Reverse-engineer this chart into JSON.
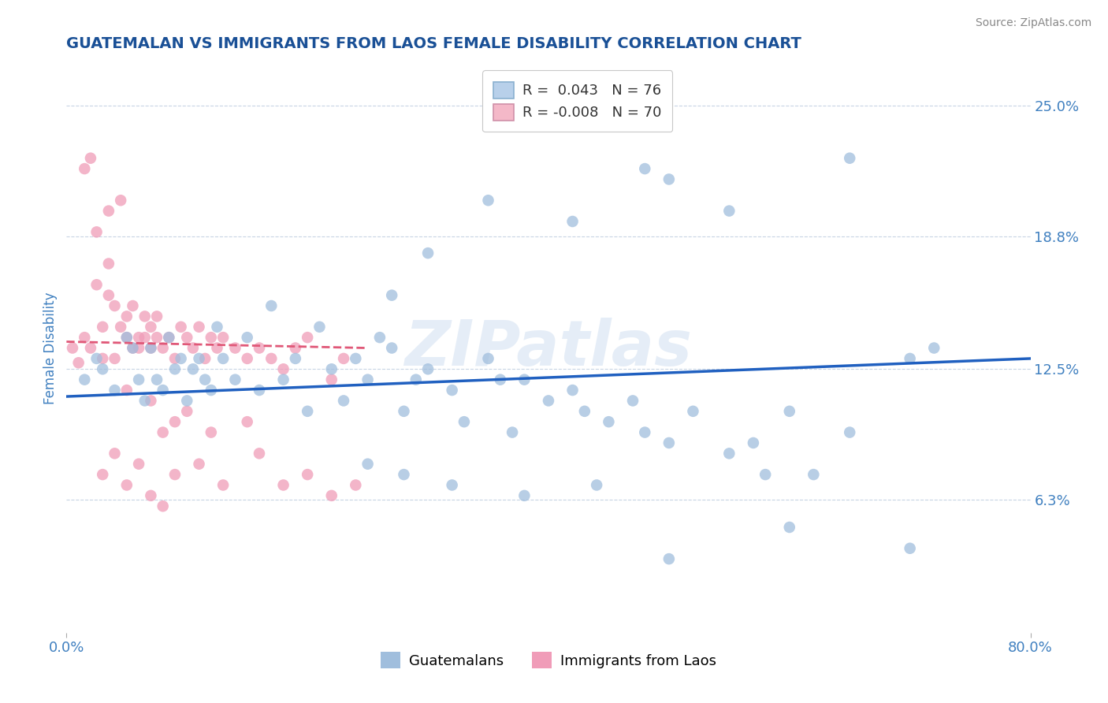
{
  "title": "GUATEMALAN VS IMMIGRANTS FROM LAOS FEMALE DISABILITY CORRELATION CHART",
  "source": "Source: ZipAtlas.com",
  "ylabel": "Female Disability",
  "y_ticks_right_labels": [
    "6.3%",
    "12.5%",
    "18.8%",
    "25.0%"
  ],
  "y_ticks_right_vals": [
    6.3,
    12.5,
    18.8,
    25.0
  ],
  "legend_blue_label": "R =  0.043   N = 76",
  "legend_pink_label": "R = -0.008   N = 70",
  "legend_blue_color": "#b8d0ea",
  "legend_pink_color": "#f4b8c8",
  "watermark": "ZIPatlas",
  "blue_dot_color": "#a0bedd",
  "pink_dot_color": "#f09cb8",
  "blue_line_color": "#2060c0",
  "pink_line_color": "#e05878",
  "background_color": "#ffffff",
  "grid_color": "#c8d4e4",
  "title_color": "#1a5096",
  "axis_label_color": "#4080c0",
  "right_tick_color": "#4080c0",
  "blue_x": [
    1.5,
    2.5,
    3.0,
    4.0,
    5.0,
    5.5,
    6.0,
    6.5,
    7.0,
    7.5,
    8.0,
    8.5,
    9.0,
    9.5,
    10.0,
    10.5,
    11.0,
    11.5,
    12.0,
    12.5,
    13.0,
    14.0,
    15.0,
    16.0,
    17.0,
    18.0,
    19.0,
    20.0,
    21.0,
    22.0,
    23.0,
    24.0,
    25.0,
    26.0,
    27.0,
    28.0,
    29.0,
    30.0,
    32.0,
    33.0,
    35.0,
    36.0,
    37.0,
    38.0,
    40.0,
    42.0,
    43.0,
    45.0,
    47.0,
    48.0,
    50.0,
    52.0,
    55.0,
    57.0,
    58.0,
    60.0,
    62.0,
    65.0,
    70.0,
    72.0,
    27.0,
    30.0,
    35.0,
    42.0,
    48.0,
    50.0,
    55.0,
    65.0,
    70.0,
    25.0,
    28.0,
    32.0,
    38.0,
    44.0,
    50.0,
    60.0
  ],
  "blue_y": [
    12.0,
    13.0,
    12.5,
    11.5,
    14.0,
    13.5,
    12.0,
    11.0,
    13.5,
    12.0,
    11.5,
    14.0,
    12.5,
    13.0,
    11.0,
    12.5,
    13.0,
    12.0,
    11.5,
    14.5,
    13.0,
    12.0,
    14.0,
    11.5,
    15.5,
    12.0,
    13.0,
    10.5,
    14.5,
    12.5,
    11.0,
    13.0,
    12.0,
    14.0,
    13.5,
    10.5,
    12.0,
    12.5,
    11.5,
    10.0,
    13.0,
    12.0,
    9.5,
    12.0,
    11.0,
    11.5,
    10.5,
    10.0,
    11.0,
    9.5,
    9.0,
    10.5,
    8.5,
    9.0,
    7.5,
    10.5,
    7.5,
    9.5,
    13.0,
    13.5,
    16.0,
    18.0,
    20.5,
    19.5,
    22.0,
    21.5,
    20.0,
    22.5,
    4.0,
    8.0,
    7.5,
    7.0,
    6.5,
    7.0,
    3.5,
    5.0
  ],
  "pink_x": [
    0.5,
    1.0,
    1.5,
    2.0,
    2.0,
    2.5,
    3.0,
    3.0,
    3.5,
    3.5,
    4.0,
    4.0,
    4.5,
    4.5,
    5.0,
    5.0,
    5.5,
    5.5,
    6.0,
    6.0,
    6.5,
    6.5,
    7.0,
    7.0,
    7.5,
    7.5,
    8.0,
    8.5,
    9.0,
    9.5,
    10.0,
    10.5,
    11.0,
    11.5,
    12.0,
    12.5,
    13.0,
    14.0,
    15.0,
    16.0,
    17.0,
    18.0,
    19.0,
    20.0,
    22.0,
    23.0,
    5.0,
    7.0,
    8.0,
    1.5,
    2.5,
    3.5,
    9.0,
    10.0,
    12.0,
    15.0,
    3.0,
    4.0,
    5.0,
    6.0,
    7.0,
    8.0,
    9.0,
    11.0,
    13.0,
    16.0,
    18.0,
    20.0,
    22.0,
    24.0
  ],
  "pink_y": [
    13.5,
    12.8,
    14.0,
    13.5,
    22.5,
    16.5,
    14.5,
    13.0,
    20.0,
    16.0,
    15.5,
    13.0,
    20.5,
    14.5,
    15.0,
    14.0,
    15.5,
    13.5,
    14.0,
    13.5,
    15.0,
    14.0,
    14.5,
    13.5,
    15.0,
    14.0,
    13.5,
    14.0,
    13.0,
    14.5,
    14.0,
    13.5,
    14.5,
    13.0,
    14.0,
    13.5,
    14.0,
    13.5,
    13.0,
    13.5,
    13.0,
    12.5,
    13.5,
    14.0,
    12.0,
    13.0,
    11.5,
    11.0,
    9.5,
    22.0,
    19.0,
    17.5,
    10.0,
    10.5,
    9.5,
    10.0,
    7.5,
    8.5,
    7.0,
    8.0,
    6.5,
    6.0,
    7.5,
    8.0,
    7.0,
    8.5,
    7.0,
    7.5,
    6.5,
    7.0
  ],
  "blue_trend_x": [
    0.0,
    80.0
  ],
  "blue_trend_y": [
    11.2,
    13.0
  ],
  "pink_trend_x": [
    0.0,
    25.0
  ],
  "pink_trend_y": [
    13.8,
    13.5
  ],
  "scatter_size": 110,
  "xlim": [
    0,
    80
  ],
  "ylim": [
    0,
    27
  ]
}
